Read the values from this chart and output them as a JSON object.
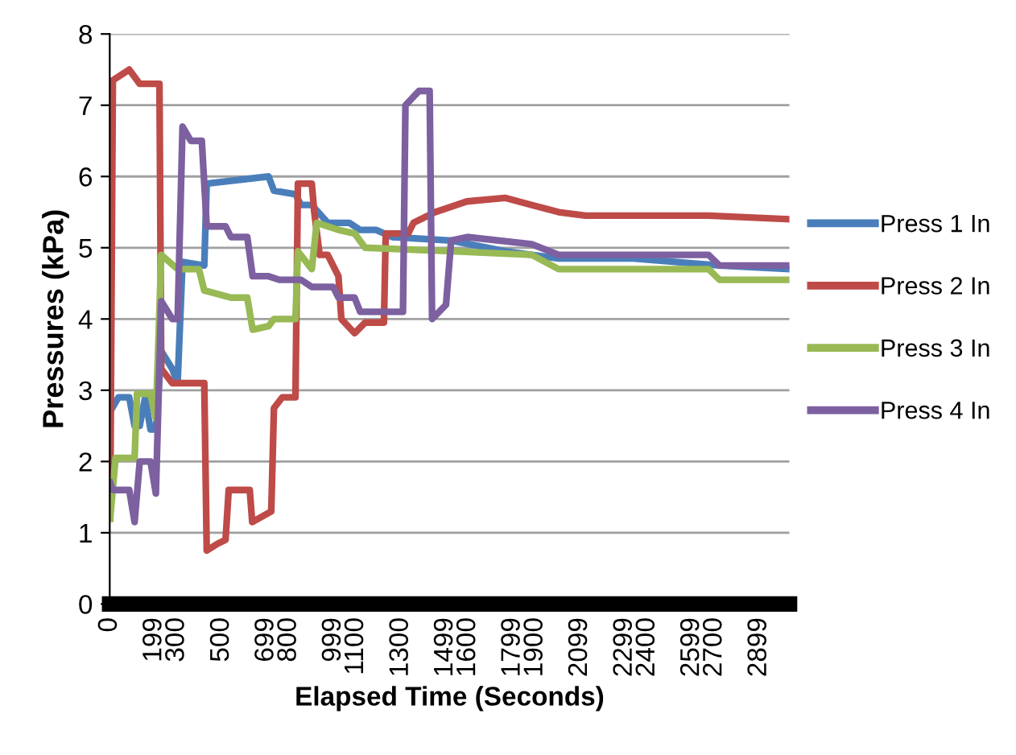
{
  "chart_data": {
    "type": "line",
    "xlabel": "Elapsed Time (Seconds)",
    "ylabel": "Pressures (kPa)",
    "ylim": [
      0,
      8
    ],
    "yticks": [
      0,
      1,
      2,
      3,
      4,
      5,
      6,
      7,
      8
    ],
    "xlim": [
      0,
      3034
    ],
    "xticks": [
      0,
      199,
      300,
      500,
      699,
      800,
      999,
      1100,
      1300,
      1499,
      1600,
      1799,
      1900,
      2099,
      2299,
      2400,
      2599,
      2700,
      2899
    ],
    "grid": "y",
    "legend": "right",
    "marker": "none",
    "line_style": "solid",
    "series": [
      {
        "name": "Press 1 In",
        "color": "#4a7ebb",
        "x": [
          2,
          39,
          87,
          111,
          134,
          158,
          182,
          206,
          230,
          279,
          303,
          325,
          422,
          433,
          709,
          733,
          829,
          854,
          902,
          973,
          1069,
          1118,
          1189,
          1261,
          1524,
          1764,
          2004,
          2336,
          2722,
          3034
        ],
        "values": [
          2.7,
          2.9,
          2.9,
          2.5,
          2.5,
          2.9,
          2.45,
          2.45,
          3.55,
          3.3,
          3.1,
          4.8,
          4.75,
          5.9,
          6.0,
          5.8,
          5.75,
          5.6,
          5.6,
          5.35,
          5.35,
          5.25,
          5.25,
          5.15,
          5.1,
          4.95,
          4.85,
          4.85,
          4.75,
          4.7
        ]
      },
      {
        "name": "Press 2 In",
        "color": "#be4b48",
        "x": [
          2,
          14,
          87,
          134,
          222,
          230,
          279,
          398,
          422,
          433,
          483,
          517,
          531,
          625,
          636,
          721,
          733,
          770,
          829,
          840,
          902,
          913,
          937,
          973,
          1021,
          1034,
          1093,
          1140,
          1224,
          1232,
          1332,
          1356,
          1453,
          1594,
          1764,
          1884,
          2004,
          2123,
          2673,
          3034
        ],
        "values": [
          1.2,
          7.35,
          7.5,
          7.3,
          7.3,
          3.3,
          3.1,
          3.1,
          3.1,
          0.75,
          0.85,
          0.9,
          1.6,
          1.6,
          1.15,
          1.3,
          2.75,
          2.9,
          2.9,
          5.9,
          5.9,
          5.5,
          4.9,
          4.9,
          4.6,
          4.0,
          3.8,
          3.95,
          3.95,
          5.2,
          5.2,
          5.35,
          5.5,
          5.65,
          5.7,
          5.6,
          5.5,
          5.45,
          5.45,
          5.4
        ]
      },
      {
        "name": "Press 3 In",
        "color": "#98b954",
        "x": [
          2,
          26,
          111,
          122,
          182,
          206,
          230,
          303,
          398,
          422,
          541,
          614,
          638,
          709,
          733,
          829,
          840,
          902,
          924,
          1021,
          1093,
          1140,
          1524,
          1884,
          2004,
          2673,
          2722,
          3034
        ],
        "values": [
          1.2,
          2.05,
          2.05,
          2.95,
          2.95,
          2.6,
          4.9,
          4.7,
          4.7,
          4.4,
          4.3,
          4.3,
          3.85,
          3.9,
          4.0,
          4.0,
          4.95,
          4.7,
          5.35,
          5.25,
          5.2,
          5.0,
          4.95,
          4.9,
          4.7,
          4.7,
          4.55,
          4.55
        ]
      },
      {
        "name": "Press 4 In",
        "color": "#7d60a0",
        "x": [
          2,
          14,
          87,
          111,
          134,
          182,
          206,
          230,
          279,
          303,
          325,
          362,
          411,
          433,
          517,
          541,
          614,
          638,
          709,
          757,
          854,
          902,
          997,
          1021,
          1093,
          1118,
          1309,
          1320,
          1380,
          1428,
          1439,
          1501,
          1524,
          1596,
          1884,
          2004,
          2673,
          2722,
          3034
        ],
        "values": [
          1.7,
          1.6,
          1.6,
          1.15,
          2.0,
          2.0,
          1.55,
          4.25,
          4.0,
          4.0,
          6.7,
          6.5,
          6.5,
          5.3,
          5.3,
          5.15,
          5.15,
          4.6,
          4.6,
          4.55,
          4.55,
          4.45,
          4.45,
          4.3,
          4.3,
          4.1,
          4.1,
          7.0,
          7.2,
          7.2,
          4.0,
          4.2,
          5.1,
          5.15,
          5.05,
          4.9,
          4.9,
          4.75,
          4.75
        ]
      }
    ]
  }
}
